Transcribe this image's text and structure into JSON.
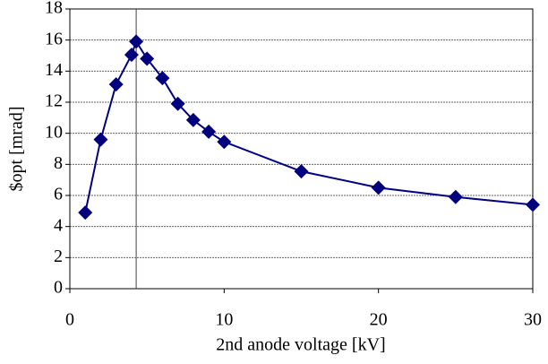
{
  "chart_data": {
    "type": "line",
    "xlabel": "2nd anode voltage [kV]",
    "ylabel": "$opt [mrad]",
    "x": [
      1,
      2,
      3,
      4,
      4.3,
      5,
      6,
      7,
      8,
      9,
      10,
      15,
      20,
      25,
      30
    ],
    "series": [
      {
        "color": "#00007f",
        "values": [
          4.9,
          9.6,
          13.15,
          15.05,
          15.9,
          14.8,
          13.55,
          11.9,
          10.85,
          10.1,
          9.45,
          7.55,
          6.5,
          5.9,
          5.4
        ]
      }
    ],
    "xlim": [
      0,
      30
    ],
    "xticks": [
      0,
      10,
      20,
      30
    ],
    "ylim": [
      0,
      18
    ],
    "yticks": [
      0,
      2,
      4,
      6,
      8,
      10,
      12,
      14,
      16,
      18
    ],
    "grid": true,
    "vline": 4.3
  }
}
